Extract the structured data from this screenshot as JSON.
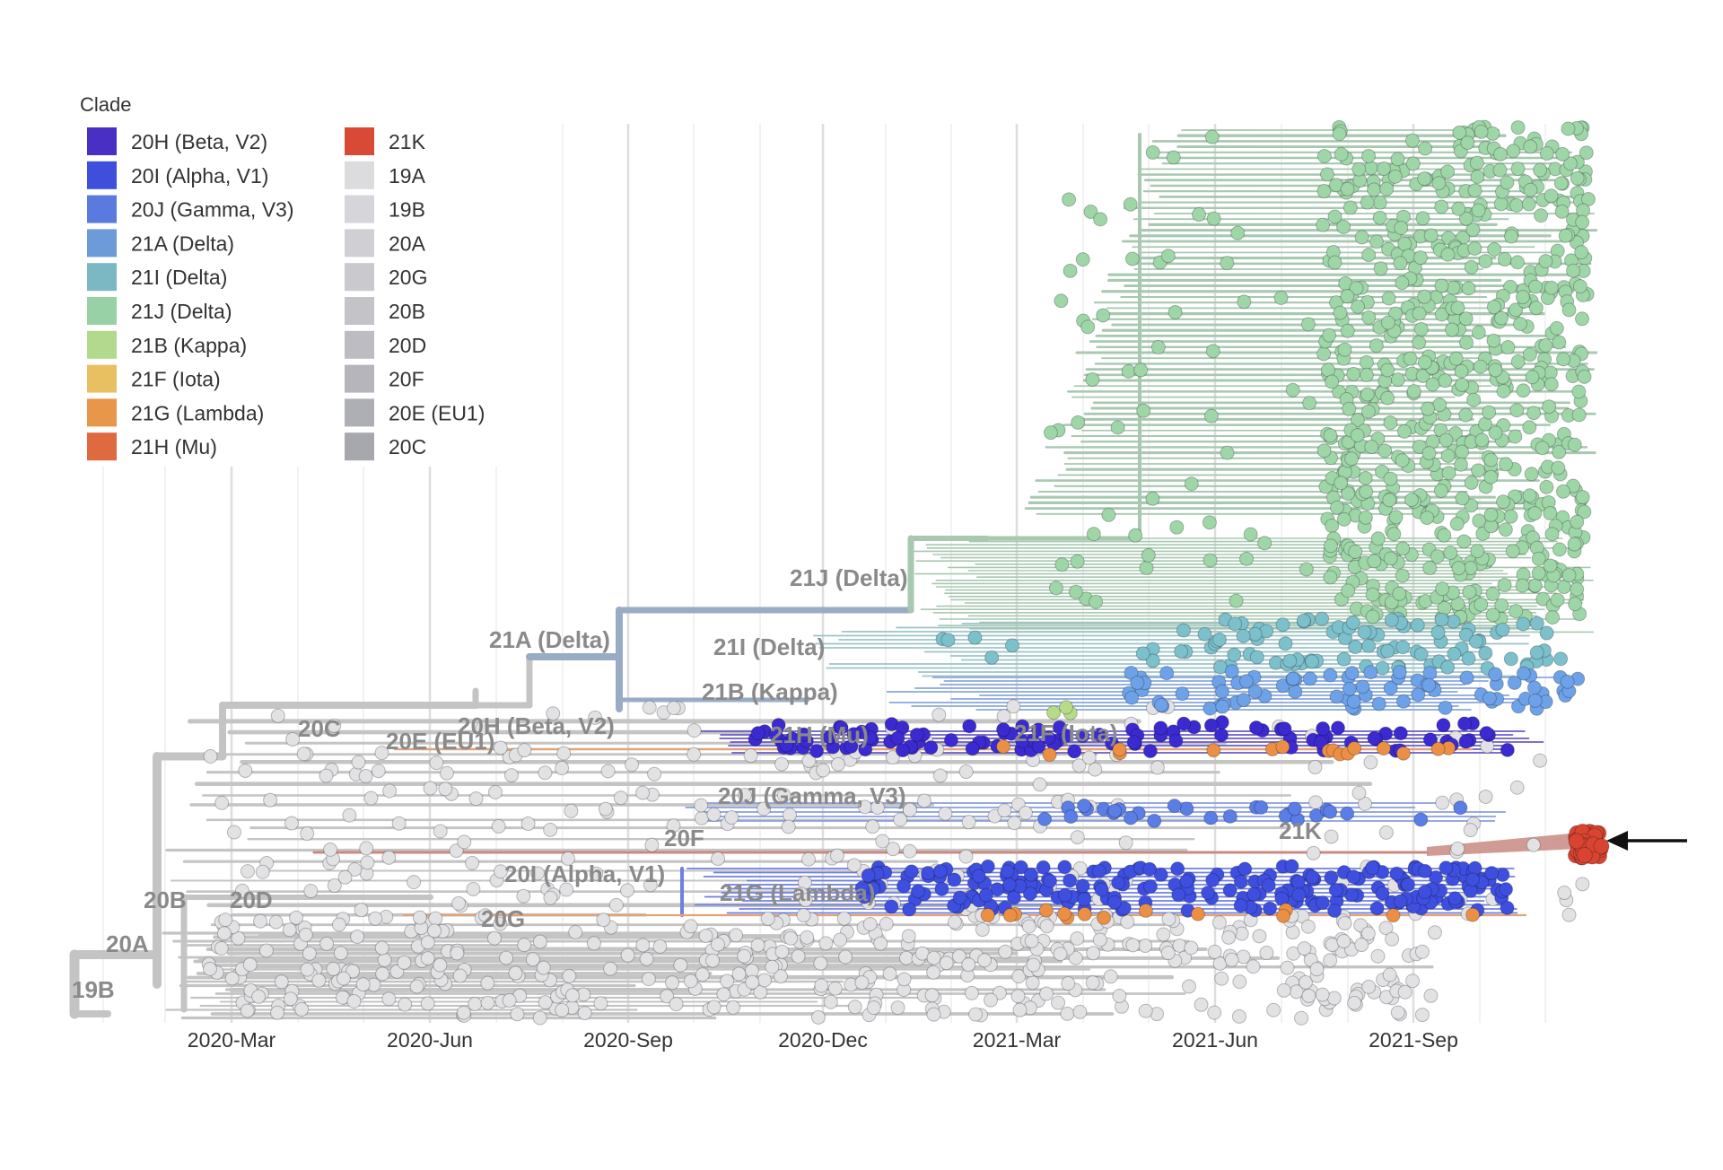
{
  "legend": {
    "title": "Clade",
    "items": [
      {
        "label": "20H (Beta, V2)",
        "color": "#4a2fc4"
      },
      {
        "label": "20I (Alpha, V1)",
        "color": "#3f4fdc"
      },
      {
        "label": "20J (Gamma, V3)",
        "color": "#5a7ae0"
      },
      {
        "label": "21A (Delta)",
        "color": "#6d9ad8"
      },
      {
        "label": "21I (Delta)",
        "color": "#7cb8c4"
      },
      {
        "label": "21J (Delta)",
        "color": "#98d1a6"
      },
      {
        "label": "21B (Kappa)",
        "color": "#b3d98c"
      },
      {
        "label": "21F (Iota)",
        "color": "#e8c062"
      },
      {
        "label": "21G (Lambda)",
        "color": "#e8964a"
      },
      {
        "label": "21H (Mu)",
        "color": "#e06a40"
      },
      {
        "label": "21K",
        "color": "#d84a36"
      },
      {
        "label": "19A",
        "color": "#dcdcdf"
      },
      {
        "label": "19B",
        "color": "#d6d6da"
      },
      {
        "label": "20A",
        "color": "#d0d0d4"
      },
      {
        "label": "20G",
        "color": "#c9c9ce"
      },
      {
        "label": "20B",
        "color": "#c3c3c8"
      },
      {
        "label": "20D",
        "color": "#bcbcc2"
      },
      {
        "label": "20F",
        "color": "#b5b5bb"
      },
      {
        "label": "20E (EU1)",
        "color": "#aeaeb5"
      },
      {
        "label": "20C",
        "color": "#a7a7ae"
      }
    ]
  },
  "axis": {
    "ticks": [
      "2020-Mar",
      "2020-Jun",
      "2020-Sep",
      "2020-Dec",
      "2021-Mar",
      "2021-Jun",
      "2021-Sep"
    ]
  },
  "clade_labels": {
    "l21J": "21J (Delta)",
    "l21A": "21A (Delta)",
    "l21I": "21I (Delta)",
    "l21B": "21B (Kappa)",
    "l20C": "20C",
    "l20E": "20E (EU1)",
    "l20H": "20H (Beta, V2)",
    "l21H": "21H (Mu)",
    "l21F": "21F (Iota)",
    "l20J": "20J (Gamma, V3)",
    "l21K": "21K",
    "l20F": "20F",
    "l20I": "20I (Alpha, V1)",
    "l21G": "21G (Lambda)",
    "l20B": "20B",
    "l20D": "20D",
    "l20G": "20G",
    "l20A": "20A",
    "l19B": "19B"
  },
  "colors": {
    "branch_gray": "#c4c4c4",
    "branch_delta": "#9aabc6",
    "branch_21J": "#a8c8b0",
    "branch_21K": "#c98a82",
    "tip_gray": "#e2e2e4",
    "tip_21J": "#9fd6a8",
    "tip_21I": "#7cc0cc",
    "tip_21A": "#6ea2e8",
    "tip_20H": "#3b2ad0",
    "tip_20I": "#3e4fe0",
    "tip_20J": "#5a7de6",
    "tip_orange": "#eb8f45",
    "tip_21K": "#d94432",
    "arrow": "#111111"
  }
}
